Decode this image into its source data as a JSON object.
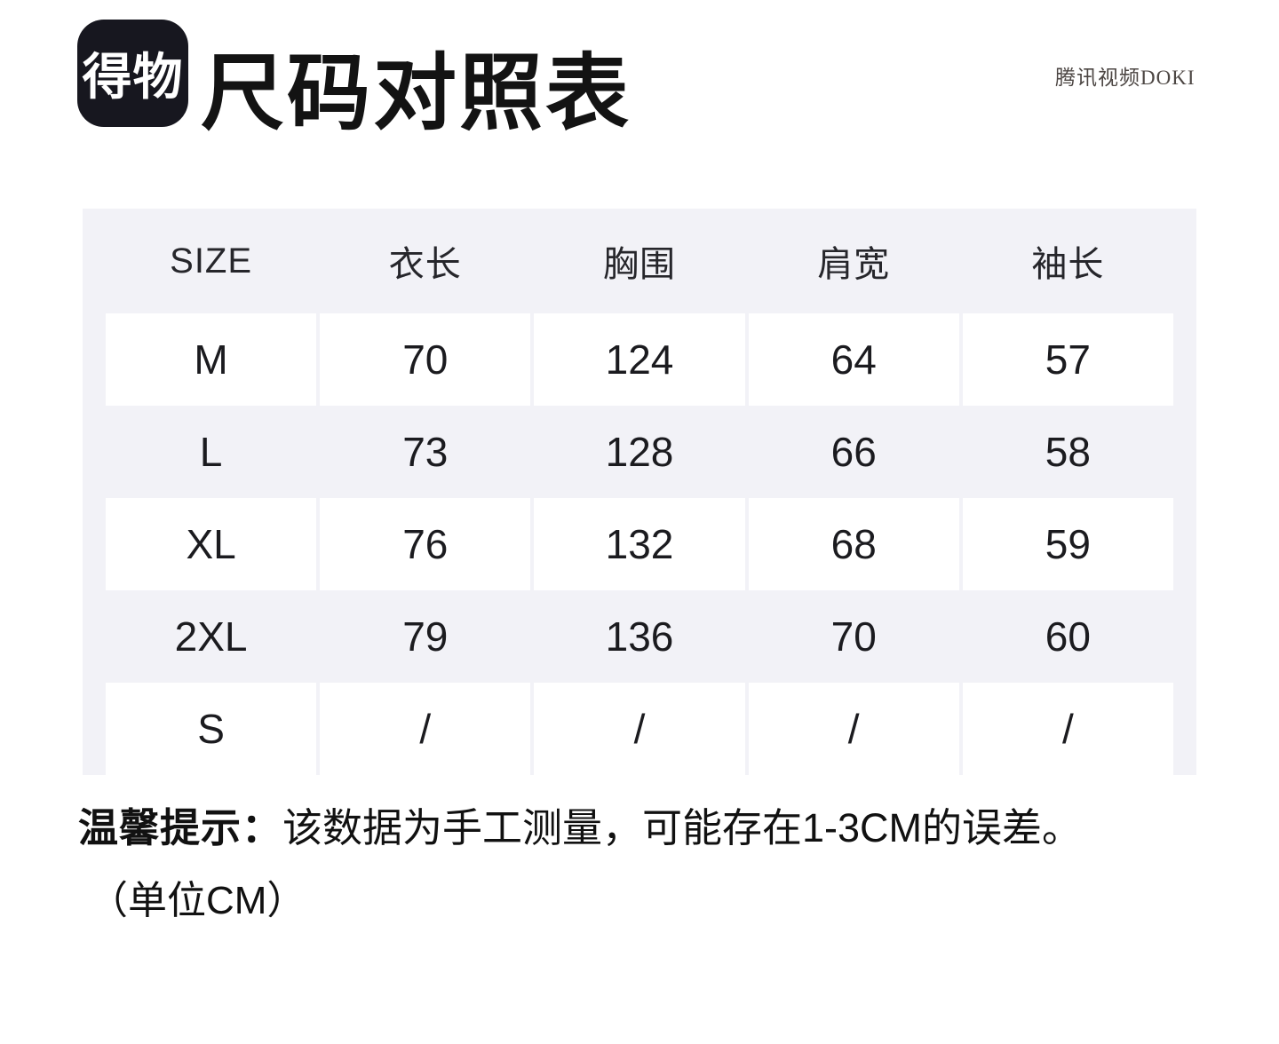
{
  "header": {
    "logo_text": "得物",
    "title": "尺码对照表",
    "watermark": "腾讯视频DOKI"
  },
  "table": {
    "columns": [
      "SIZE",
      "衣长",
      "胸围",
      "肩宽",
      "袖长"
    ],
    "rows": [
      {
        "size": "M",
        "values": [
          "70",
          "124",
          "64",
          "57"
        ]
      },
      {
        "size": "L",
        "values": [
          "73",
          "128",
          "66",
          "58"
        ]
      },
      {
        "size": "XL",
        "values": [
          "76",
          "132",
          "68",
          "59"
        ]
      },
      {
        "size": "2XL",
        "values": [
          "79",
          "136",
          "70",
          "60"
        ]
      },
      {
        "size": "S",
        "values": [
          "/",
          "/",
          "/",
          "/"
        ]
      }
    ]
  },
  "footer": {
    "note_label": "温馨提示：",
    "note_text": "该数据为手工测量，可能存在1-3CM的误差。",
    "unit_note": "（单位CM）"
  },
  "colors": {
    "page_bg": "#ffffff",
    "table_bg": "#f2f2f7",
    "cell_bg": "#ffffff",
    "logo_bg": "#17171f",
    "text": "#1b1b1f",
    "watermark_text": "#4c4643"
  }
}
